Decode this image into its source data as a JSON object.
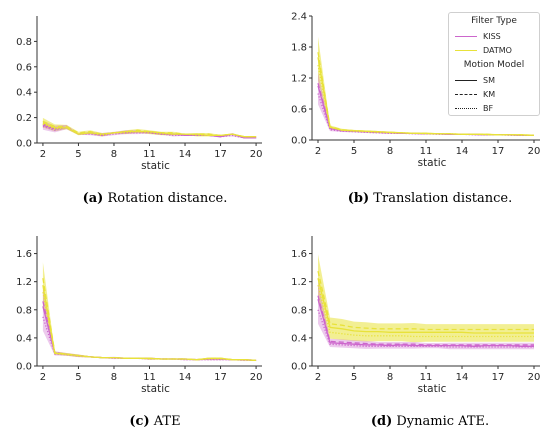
{
  "captions": [
    {
      "letter": "(a)",
      "text": " Rotation distance."
    },
    {
      "letter": "(b)",
      "text": " Translation distance."
    },
    {
      "letter": "(c)",
      "text": " ATE"
    },
    {
      "letter": "(d)",
      "text": " Dynamic ATE."
    }
  ],
  "legend": {
    "title1": "Filter Type",
    "kiss": "KISS",
    "datmo": "DATMO",
    "title2": "Motion Model",
    "sm": "SM",
    "km": "KM",
    "bf": "BF"
  },
  "colors": {
    "kiss": "#cc66cc",
    "datmo": "#e8e23a",
    "axis": "#333333"
  },
  "chart_data": [
    {
      "type": "line",
      "xlabel": "static",
      "ylabel": "",
      "xlim": [
        1.5,
        20.5
      ],
      "ylim": [
        0,
        1.0
      ],
      "xticks": [
        2,
        5,
        8,
        11,
        14,
        17,
        20
      ],
      "yticks": [
        "0.0",
        "0.2",
        "0.4",
        "0.6",
        "0.8"
      ],
      "x": [
        2,
        3,
        4,
        5,
        6,
        7,
        8,
        9,
        10,
        11,
        12,
        13,
        14,
        15,
        16,
        17,
        18,
        19,
        20
      ],
      "series": [
        {
          "name": "KISS",
          "style": "SM",
          "values": [
            0.14,
            0.11,
            0.12,
            0.07,
            0.08,
            0.06,
            0.08,
            0.08,
            0.09,
            0.08,
            0.07,
            0.07,
            0.06,
            0.06,
            0.06,
            0.05,
            0.07,
            0.04,
            0.04
          ]
        },
        {
          "name": "KISS",
          "style": "KM",
          "values": [
            0.15,
            0.12,
            0.13,
            0.07,
            0.08,
            0.07,
            0.08,
            0.09,
            0.09,
            0.08,
            0.07,
            0.07,
            0.06,
            0.06,
            0.06,
            0.05,
            0.07,
            0.04,
            0.04
          ]
        },
        {
          "name": "KISS",
          "style": "BF",
          "values": [
            0.13,
            0.1,
            0.12,
            0.07,
            0.07,
            0.06,
            0.07,
            0.08,
            0.08,
            0.08,
            0.07,
            0.06,
            0.06,
            0.06,
            0.06,
            0.05,
            0.06,
            0.04,
            0.04
          ]
        },
        {
          "name": "DATMO",
          "style": "SM",
          "values": [
            0.16,
            0.12,
            0.12,
            0.07,
            0.08,
            0.07,
            0.08,
            0.09,
            0.09,
            0.09,
            0.08,
            0.07,
            0.07,
            0.07,
            0.06,
            0.06,
            0.07,
            0.05,
            0.05
          ]
        },
        {
          "name": "DATMO",
          "style": "KM",
          "values": [
            0.17,
            0.13,
            0.13,
            0.08,
            0.09,
            0.07,
            0.08,
            0.09,
            0.1,
            0.09,
            0.08,
            0.08,
            0.07,
            0.07,
            0.07,
            0.06,
            0.07,
            0.05,
            0.05
          ]
        },
        {
          "name": "DATMO",
          "style": "BF",
          "values": [
            0.15,
            0.11,
            0.12,
            0.07,
            0.08,
            0.06,
            0.08,
            0.08,
            0.09,
            0.08,
            0.07,
            0.07,
            0.07,
            0.06,
            0.06,
            0.06,
            0.07,
            0.05,
            0.05
          ]
        }
      ]
    },
    {
      "type": "line",
      "xlabel": "static",
      "ylabel": "",
      "xlim": [
        1.5,
        20.5
      ],
      "ylim": [
        0,
        2.4
      ],
      "xticks": [
        2,
        5,
        8,
        11,
        14,
        17,
        20
      ],
      "yticks": [
        "0.0",
        "0.6",
        "1.2",
        "1.8",
        "2.4"
      ],
      "x": [
        2,
        3,
        4,
        5,
        6,
        7,
        8,
        9,
        10,
        11,
        12,
        13,
        14,
        15,
        16,
        17,
        18,
        19,
        20
      ],
      "series": [
        {
          "name": "KISS",
          "style": "SM",
          "values": [
            1.05,
            0.22,
            0.18,
            0.17,
            0.16,
            0.15,
            0.14,
            0.13,
            0.13,
            0.12,
            0.12,
            0.11,
            0.11,
            0.11,
            0.1,
            0.1,
            0.1,
            0.09,
            0.09
          ]
        },
        {
          "name": "KISS",
          "style": "KM",
          "values": [
            1.1,
            0.23,
            0.18,
            0.17,
            0.16,
            0.15,
            0.14,
            0.13,
            0.13,
            0.12,
            0.12,
            0.11,
            0.11,
            0.11,
            0.1,
            0.1,
            0.1,
            0.09,
            0.09
          ]
        },
        {
          "name": "KISS",
          "style": "BF",
          "values": [
            0.9,
            0.2,
            0.17,
            0.16,
            0.15,
            0.14,
            0.13,
            0.13,
            0.12,
            0.12,
            0.11,
            0.11,
            0.11,
            0.1,
            0.1,
            0.1,
            0.09,
            0.09,
            0.09
          ]
        },
        {
          "name": "DATMO",
          "style": "SM",
          "values": [
            1.6,
            0.25,
            0.19,
            0.18,
            0.17,
            0.16,
            0.15,
            0.14,
            0.13,
            0.13,
            0.12,
            0.12,
            0.11,
            0.11,
            0.11,
            0.1,
            0.1,
            0.1,
            0.09
          ]
        },
        {
          "name": "DATMO",
          "style": "KM",
          "values": [
            1.7,
            0.26,
            0.2,
            0.18,
            0.17,
            0.16,
            0.15,
            0.14,
            0.13,
            0.13,
            0.12,
            0.12,
            0.11,
            0.11,
            0.11,
            0.1,
            0.1,
            0.1,
            0.09
          ]
        },
        {
          "name": "DATMO",
          "style": "BF",
          "values": [
            1.45,
            0.24,
            0.19,
            0.17,
            0.16,
            0.15,
            0.14,
            0.14,
            0.13,
            0.12,
            0.12,
            0.12,
            0.11,
            0.11,
            0.1,
            0.1,
            0.1,
            0.09,
            0.09
          ]
        }
      ]
    },
    {
      "type": "line",
      "xlabel": "static",
      "ylabel": "",
      "xlim": [
        1.5,
        20.5
      ],
      "ylim": [
        0,
        1.85
      ],
      "xticks": [
        2,
        5,
        8,
        11,
        14,
        17,
        20
      ],
      "yticks": [
        "0.0",
        "0.4",
        "0.8",
        "1.2",
        "1.6"
      ],
      "x": [
        2,
        3,
        4,
        5,
        6,
        7,
        8,
        9,
        10,
        11,
        12,
        13,
        14,
        15,
        16,
        17,
        18,
        19,
        20
      ],
      "series": [
        {
          "name": "KISS",
          "style": "SM",
          "values": [
            0.85,
            0.18,
            0.17,
            0.15,
            0.13,
            0.12,
            0.12,
            0.11,
            0.11,
            0.11,
            0.1,
            0.1,
            0.1,
            0.09,
            0.1,
            0.1,
            0.09,
            0.09,
            0.08
          ]
        },
        {
          "name": "KISS",
          "style": "KM",
          "values": [
            0.92,
            0.19,
            0.17,
            0.15,
            0.13,
            0.12,
            0.12,
            0.11,
            0.11,
            0.11,
            0.1,
            0.1,
            0.1,
            0.09,
            0.1,
            0.1,
            0.09,
            0.09,
            0.08
          ]
        },
        {
          "name": "KISS",
          "style": "BF",
          "values": [
            0.7,
            0.17,
            0.16,
            0.14,
            0.13,
            0.12,
            0.11,
            0.11,
            0.11,
            0.1,
            0.1,
            0.1,
            0.09,
            0.09,
            0.09,
            0.09,
            0.09,
            0.08,
            0.08
          ]
        },
        {
          "name": "DATMO",
          "style": "SM",
          "values": [
            1.15,
            0.18,
            0.17,
            0.15,
            0.13,
            0.12,
            0.12,
            0.11,
            0.11,
            0.11,
            0.1,
            0.1,
            0.1,
            0.09,
            0.11,
            0.11,
            0.09,
            0.09,
            0.08
          ]
        },
        {
          "name": "DATMO",
          "style": "KM",
          "values": [
            1.25,
            0.19,
            0.17,
            0.15,
            0.13,
            0.12,
            0.12,
            0.11,
            0.11,
            0.11,
            0.1,
            0.1,
            0.1,
            0.09,
            0.11,
            0.11,
            0.09,
            0.09,
            0.08
          ]
        },
        {
          "name": "DATMO",
          "style": "BF",
          "values": [
            1.05,
            0.18,
            0.16,
            0.14,
            0.13,
            0.12,
            0.12,
            0.11,
            0.11,
            0.1,
            0.1,
            0.1,
            0.1,
            0.09,
            0.1,
            0.1,
            0.09,
            0.09,
            0.08
          ]
        }
      ]
    },
    {
      "type": "line",
      "xlabel": "static",
      "ylabel": "",
      "xlim": [
        1.5,
        20.5
      ],
      "ylim": [
        0,
        1.85
      ],
      "xticks": [
        2,
        5,
        8,
        11,
        14,
        17,
        20
      ],
      "yticks": [
        "0.0",
        "0.4",
        "0.8",
        "1.2",
        "1.6"
      ],
      "x": [
        2,
        3,
        4,
        5,
        6,
        7,
        8,
        9,
        10,
        11,
        12,
        13,
        14,
        15,
        16,
        17,
        18,
        19,
        20
      ],
      "series": [
        {
          "name": "KISS",
          "style": "SM",
          "values": [
            0.95,
            0.33,
            0.32,
            0.31,
            0.3,
            0.3,
            0.29,
            0.3,
            0.29,
            0.29,
            0.29,
            0.29,
            0.29,
            0.28,
            0.29,
            0.29,
            0.29,
            0.28,
            0.28
          ]
        },
        {
          "name": "KISS",
          "style": "KM",
          "values": [
            1.0,
            0.35,
            0.34,
            0.33,
            0.32,
            0.31,
            0.31,
            0.31,
            0.31,
            0.3,
            0.3,
            0.3,
            0.3,
            0.3,
            0.3,
            0.3,
            0.3,
            0.3,
            0.3
          ]
        },
        {
          "name": "KISS",
          "style": "BF",
          "values": [
            0.8,
            0.31,
            0.3,
            0.29,
            0.28,
            0.28,
            0.28,
            0.28,
            0.28,
            0.28,
            0.28,
            0.27,
            0.27,
            0.27,
            0.27,
            0.27,
            0.27,
            0.27,
            0.27
          ]
        },
        {
          "name": "DATMO",
          "style": "SM",
          "values": [
            1.25,
            0.55,
            0.53,
            0.5,
            0.49,
            0.49,
            0.48,
            0.48,
            0.48,
            0.48,
            0.48,
            0.48,
            0.48,
            0.47,
            0.47,
            0.47,
            0.47,
            0.47,
            0.47
          ]
        },
        {
          "name": "DATMO",
          "style": "KM",
          "values": [
            1.35,
            0.6,
            0.58,
            0.55,
            0.54,
            0.53,
            0.53,
            0.53,
            0.53,
            0.52,
            0.52,
            0.52,
            0.52,
            0.52,
            0.52,
            0.52,
            0.52,
            0.52,
            0.52
          ]
        },
        {
          "name": "DATMO",
          "style": "BF",
          "values": [
            1.15,
            0.48,
            0.46,
            0.44,
            0.43,
            0.43,
            0.43,
            0.43,
            0.42,
            0.42,
            0.42,
            0.42,
            0.42,
            0.42,
            0.42,
            0.42,
            0.42,
            0.42,
            0.42
          ]
        }
      ]
    }
  ]
}
